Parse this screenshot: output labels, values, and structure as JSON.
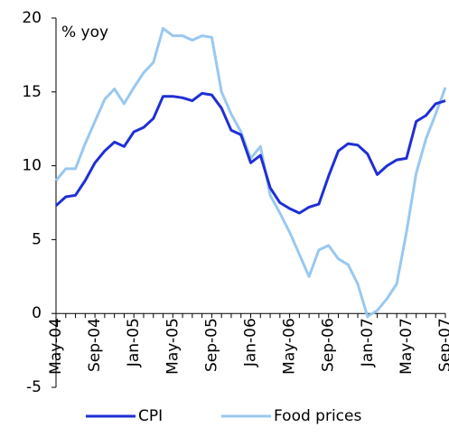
{
  "chart_data": {
    "type": "line",
    "y_label": "% yoy",
    "categories": [
      "May-04",
      null,
      null,
      null,
      "Sep-04",
      null,
      null,
      null,
      "Jan-05",
      null,
      null,
      null,
      "May-05",
      null,
      null,
      null,
      "Sep-05",
      null,
      null,
      null,
      "Jan-06",
      null,
      null,
      null,
      "May-06",
      null,
      null,
      null,
      "Sep-06",
      null,
      null,
      null,
      "Jan-07",
      null,
      null,
      null,
      "May-07",
      null,
      null,
      null,
      "Sep-07"
    ],
    "series": [
      {
        "name": "CPI",
        "color": "#1f2fd4",
        "values": [
          7.3,
          7.9,
          8.0,
          9.0,
          10.2,
          11.0,
          11.6,
          11.3,
          12.3,
          12.6,
          13.2,
          14.7,
          14.7,
          14.6,
          14.4,
          14.9,
          14.8,
          13.9,
          12.4,
          12.1,
          10.2,
          10.7,
          8.5,
          7.5,
          7.1,
          6.8,
          7.2,
          7.4,
          9.3,
          11.0,
          11.5,
          11.4,
          10.8,
          9.4,
          10.0,
          10.4,
          10.5,
          13.0,
          13.4,
          14.2,
          14.4
        ]
      },
      {
        "name": "Food prices",
        "color": "#99c8f0",
        "values": [
          9.0,
          9.8,
          9.8,
          11.5,
          13.0,
          14.5,
          15.2,
          14.2,
          15.3,
          16.3,
          17.0,
          19.3,
          18.8,
          18.8,
          18.5,
          18.8,
          18.7,
          15.0,
          13.5,
          12.3,
          10.5,
          11.3,
          8.0,
          6.8,
          5.5,
          4.0,
          2.5,
          4.3,
          4.6,
          3.7,
          3.3,
          2.0,
          -0.2,
          0.2,
          1.0,
          2.0,
          5.5,
          9.5,
          11.8,
          13.5,
          15.3
        ]
      }
    ],
    "ylim": [
      -5,
      20
    ],
    "yticks": [
      -5,
      0,
      5,
      10,
      15,
      20
    ],
    "legend": "bottom"
  }
}
